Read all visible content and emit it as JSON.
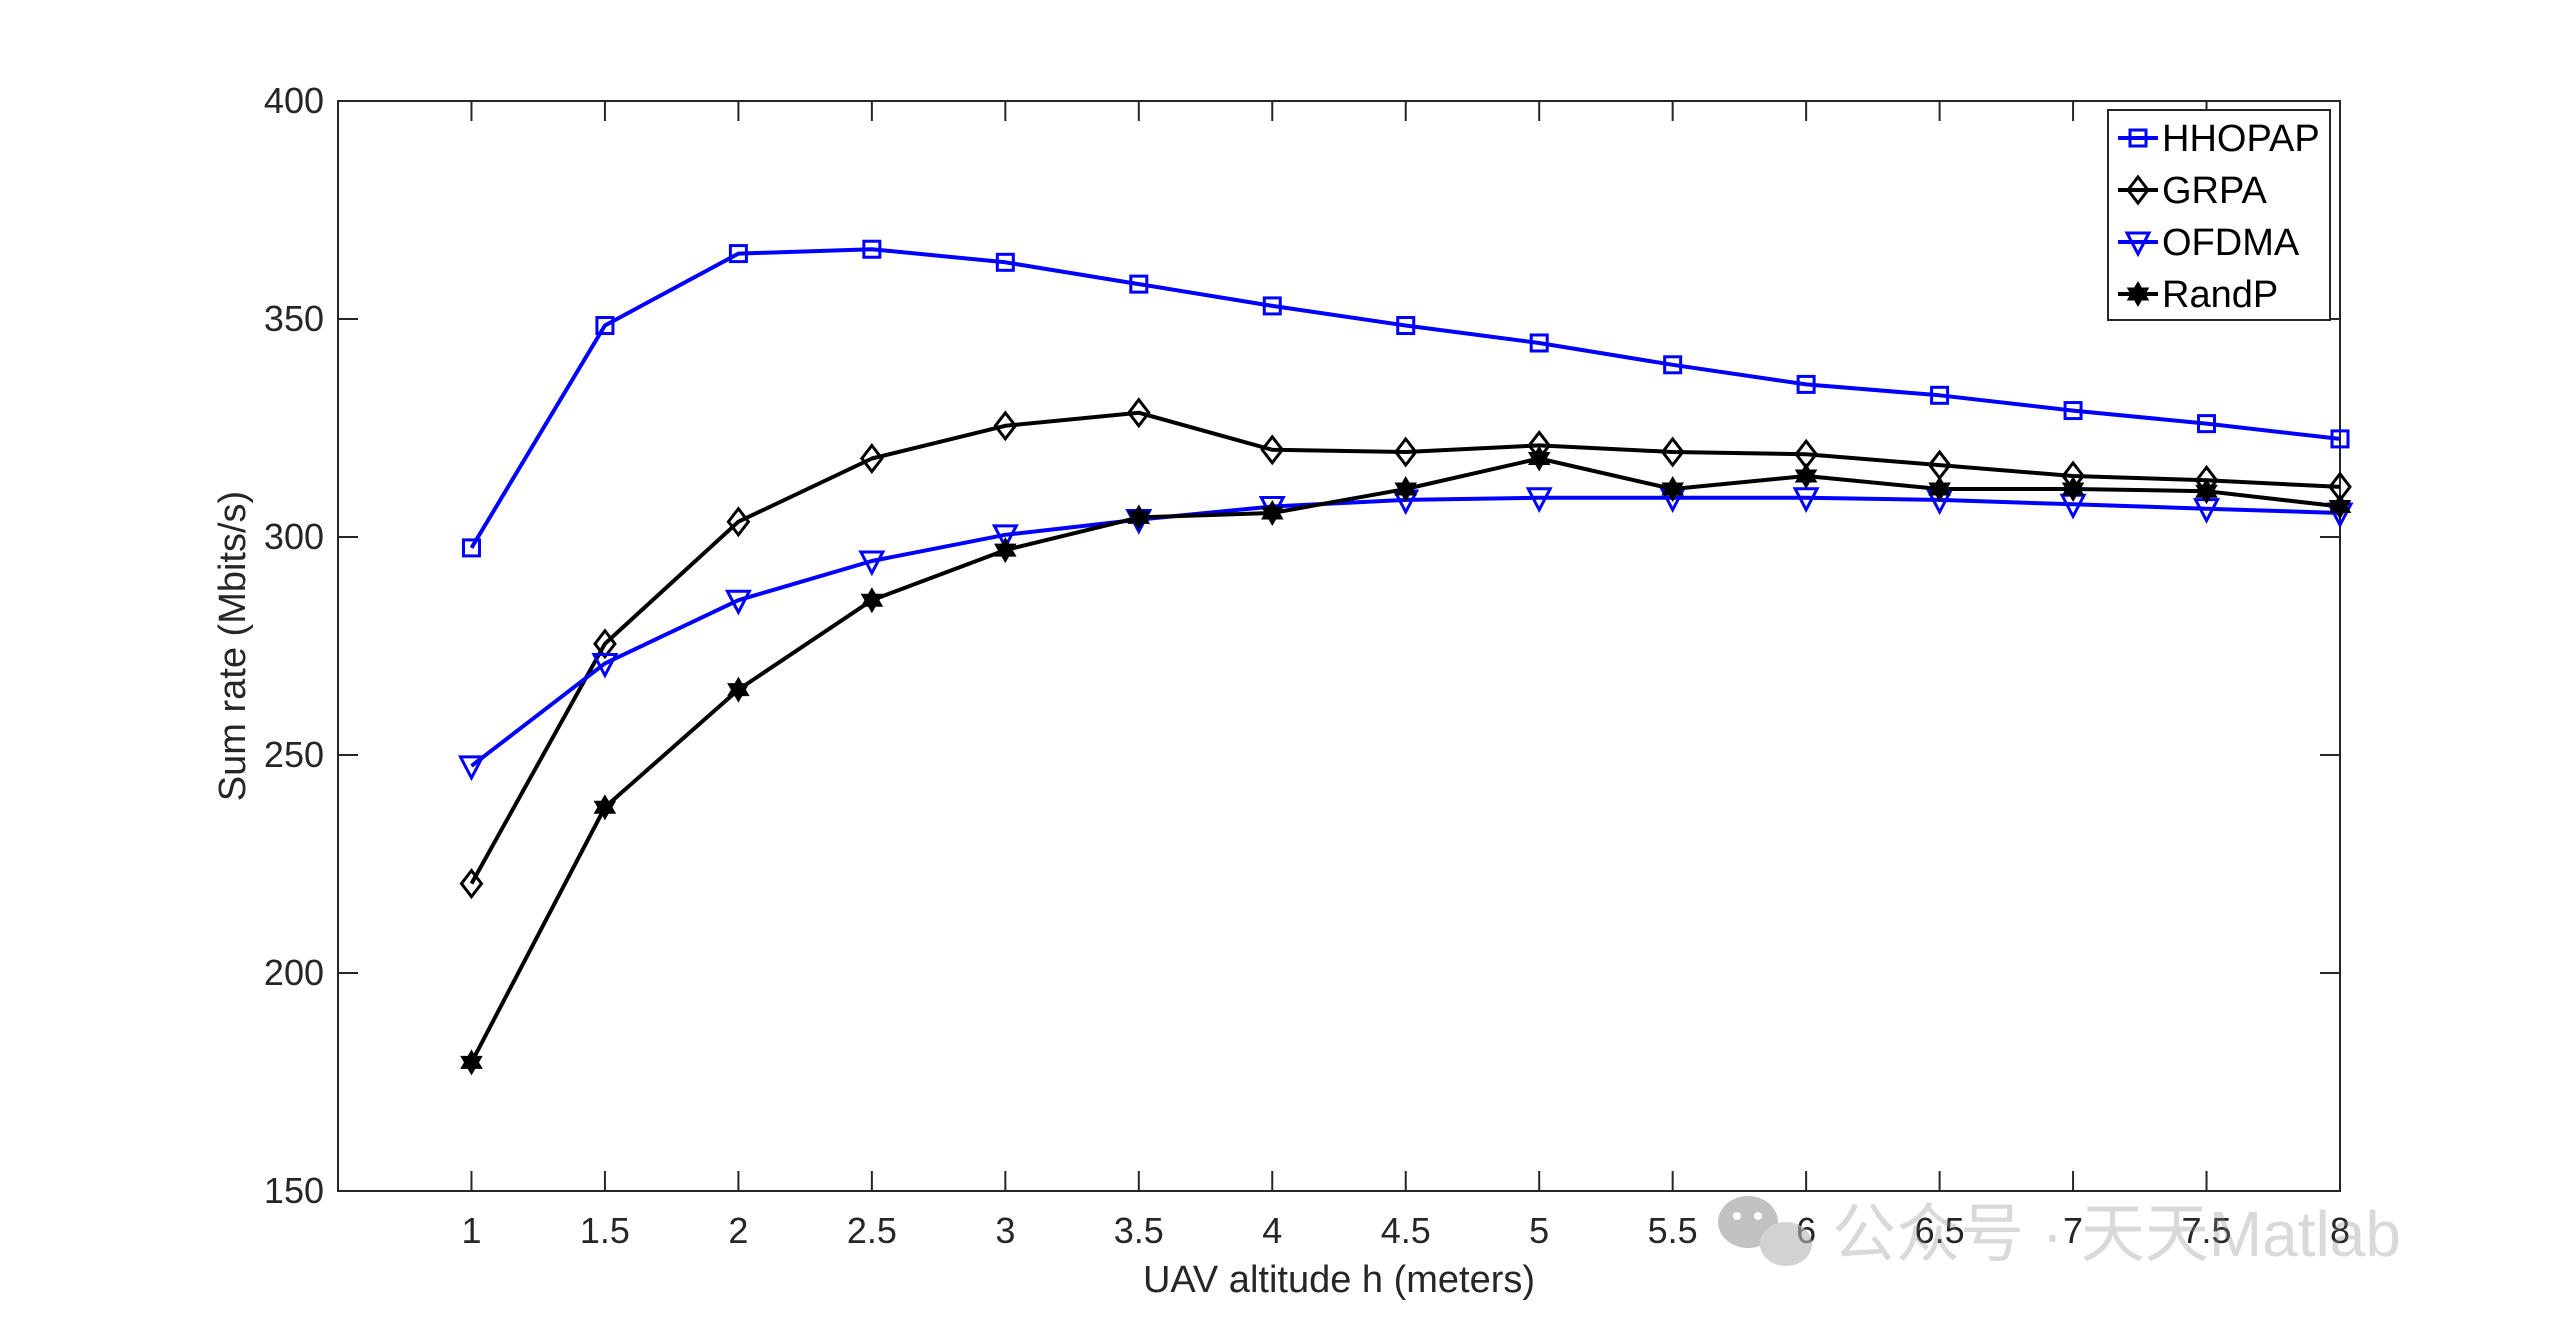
{
  "chart_data": {
    "type": "line",
    "xlabel": "UAV altitude h (meters)",
    "ylabel": "Sum rate (Mbits/s)",
    "xlim": [
      0.5,
      8
    ],
    "ylim": [
      150,
      400
    ],
    "x": [
      1,
      1.5,
      2,
      2.5,
      3,
      3.5,
      4,
      4.5,
      5,
      5.5,
      6,
      6.5,
      7,
      7.5,
      8
    ],
    "xticks": [
      "1",
      "1.5",
      "2",
      "2.5",
      "3",
      "3.5",
      "4",
      "4.5",
      "5",
      "5.5",
      "6",
      "6.5",
      "7",
      "7.5",
      "8"
    ],
    "yticks": [
      "150",
      "200",
      "250",
      "300",
      "350",
      "400"
    ],
    "grid": false,
    "legend_position": "top-right",
    "series": [
      {
        "name": "HHOPAP",
        "color": "#0000ff",
        "marker": "square",
        "values": [
          297.5,
          348.5,
          365,
          366,
          363,
          358,
          353,
          348.5,
          344.5,
          339.5,
          335,
          332.5,
          329,
          326,
          322.5
        ]
      },
      {
        "name": "GRPA",
        "color": "#000000",
        "marker": "diamond",
        "values": [
          220.5,
          275.5,
          303.5,
          318,
          325.5,
          328.5,
          320,
          319.5,
          321,
          319.5,
          319,
          316.5,
          314,
          313,
          311.5
        ]
      },
      {
        "name": "OFDMA",
        "color": "#0000ff",
        "marker": "triangle-down",
        "values": [
          247.5,
          271,
          285.5,
          294.5,
          300.5,
          304,
          307,
          308.5,
          309,
          309,
          309,
          308.5,
          307.5,
          306.5,
          305.5
        ]
      },
      {
        "name": "RandP",
        "color": "#000000",
        "marker": "hexagram",
        "values": [
          179.5,
          238,
          265,
          285.5,
          297,
          304.5,
          305.5,
          311,
          318,
          311,
          314,
          311,
          311,
          310.5,
          307
        ]
      }
    ]
  },
  "watermark": {
    "text": "公众号 · 天天Matlab",
    "icon": "wechat-icon"
  }
}
